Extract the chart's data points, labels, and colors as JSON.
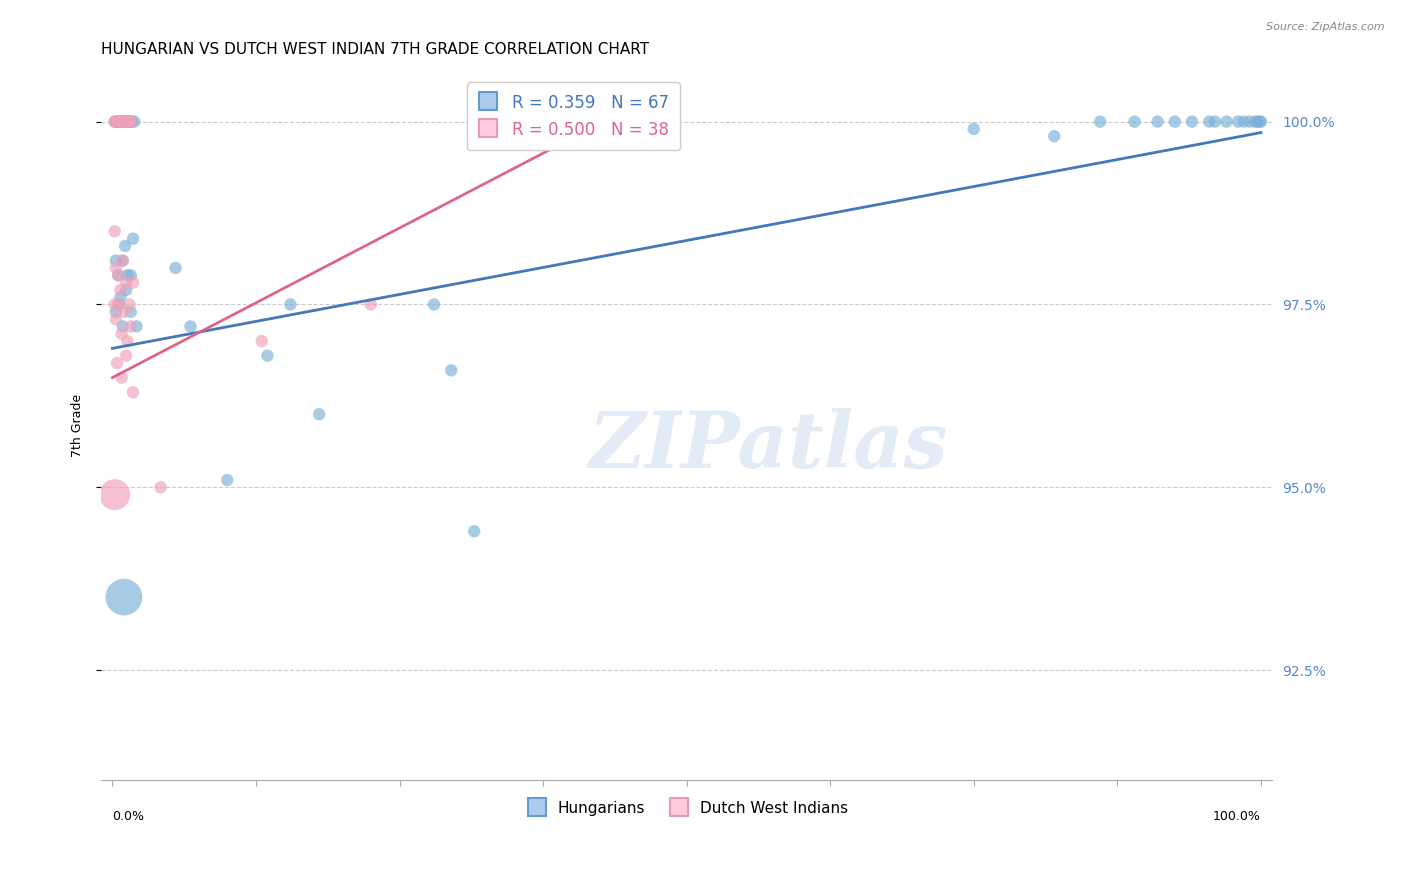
{
  "title": "HUNGARIAN VS DUTCH WEST INDIAN 7TH GRADE CORRELATION CHART",
  "source": "Source: ZipAtlas.com",
  "ylabel": "7th Grade",
  "ytick_labels": [
    "92.5%",
    "95.0%",
    "97.5%",
    "100.0%"
  ],
  "ytick_values": [
    0.925,
    0.95,
    0.975,
    1.0
  ],
  "legend_entries": [
    {
      "label": "R = 0.359   N = 67",
      "color": "#4477bb"
    },
    {
      "label": "R = 0.500   N = 38",
      "color": "#dd6688"
    }
  ],
  "legend_bottom": [
    {
      "label": "Hungarians",
      "color": "#99bbdd"
    },
    {
      "label": "Dutch West Indians",
      "color": "#ffaabb"
    }
  ],
  "watermark": "ZIPatlas",
  "blue_scatter_x": [
    0.002,
    0.003,
    0.004,
    0.005,
    0.005,
    0.006,
    0.006,
    0.007,
    0.007,
    0.008,
    0.009,
    0.01,
    0.011,
    0.012,
    0.013,
    0.014,
    0.015,
    0.016,
    0.017,
    0.019,
    0.003,
    0.005,
    0.007,
    0.009,
    0.011,
    0.013,
    0.016,
    0.018,
    0.003,
    0.006,
    0.009,
    0.012,
    0.016,
    0.021,
    0.068,
    0.135,
    0.155,
    0.28,
    0.295,
    0.055,
    0.1,
    0.18,
    0.01,
    0.315,
    0.75,
    0.82,
    0.86,
    0.89,
    0.91,
    0.925,
    0.94,
    0.955,
    0.96,
    0.97,
    0.98,
    0.985,
    0.99,
    0.995,
    0.997,
    0.999,
    1.0
  ],
  "blue_scatter_y": [
    1.0,
    1.0,
    1.0,
    1.0,
    1.0,
    1.0,
    1.0,
    1.0,
    1.0,
    1.0,
    1.0,
    1.0,
    1.0,
    1.0,
    1.0,
    1.0,
    1.0,
    1.0,
    1.0,
    1.0,
    0.981,
    0.979,
    0.976,
    0.981,
    0.983,
    0.979,
    0.979,
    0.984,
    0.974,
    0.975,
    0.972,
    0.977,
    0.974,
    0.972,
    0.972,
    0.968,
    0.975,
    0.975,
    0.966,
    0.98,
    0.951,
    0.96,
    0.935,
    0.944,
    0.999,
    0.998,
    1.0,
    1.0,
    1.0,
    1.0,
    1.0,
    1.0,
    1.0,
    1.0,
    1.0,
    1.0,
    1.0,
    1.0,
    1.0,
    1.0,
    1.0
  ],
  "blue_scatter_sizes": [
    80,
    80,
    80,
    80,
    80,
    80,
    80,
    80,
    80,
    80,
    80,
    80,
    80,
    80,
    80,
    80,
    80,
    80,
    80,
    80,
    80,
    80,
    80,
    80,
    80,
    80,
    80,
    80,
    80,
    80,
    80,
    80,
    80,
    80,
    80,
    80,
    80,
    80,
    80,
    80,
    80,
    80,
    700,
    80,
    80,
    80,
    80,
    80,
    80,
    80,
    80,
    80,
    80,
    80,
    80,
    80,
    80,
    80,
    80,
    80,
    80
  ],
  "pink_scatter_x": [
    0.002,
    0.003,
    0.004,
    0.005,
    0.006,
    0.007,
    0.008,
    0.009,
    0.01,
    0.011,
    0.012,
    0.013,
    0.014,
    0.015,
    0.016,
    0.003,
    0.005,
    0.007,
    0.009,
    0.012,
    0.015,
    0.018,
    0.003,
    0.005,
    0.008,
    0.01,
    0.013,
    0.016,
    0.004,
    0.008,
    0.012,
    0.018,
    0.13,
    0.225,
    0.002,
    0.042,
    0.002,
    0.002
  ],
  "pink_scatter_y": [
    1.0,
    1.0,
    1.0,
    1.0,
    1.0,
    1.0,
    1.0,
    1.0,
    1.0,
    1.0,
    1.0,
    1.0,
    1.0,
    1.0,
    1.0,
    0.98,
    0.979,
    0.977,
    0.981,
    0.978,
    0.975,
    0.978,
    0.973,
    0.975,
    0.971,
    0.974,
    0.97,
    0.972,
    0.967,
    0.965,
    0.968,
    0.963,
    0.97,
    0.975,
    0.949,
    0.95,
    0.985,
    0.975
  ],
  "pink_scatter_sizes": [
    80,
    80,
    80,
    80,
    80,
    80,
    80,
    80,
    80,
    80,
    80,
    80,
    80,
    80,
    80,
    80,
    80,
    80,
    80,
    80,
    80,
    80,
    80,
    80,
    80,
    80,
    80,
    80,
    80,
    80,
    80,
    80,
    80,
    80,
    500,
    80,
    80,
    80
  ],
  "blue_line_x": [
    0.0,
    1.0
  ],
  "blue_line_y": [
    0.969,
    0.9985
  ],
  "pink_line_x": [
    0.0,
    0.44
  ],
  "pink_line_y": [
    0.965,
    1.001
  ],
  "xlim": [
    -0.01,
    1.01
  ],
  "ylim": [
    0.91,
    1.007
  ],
  "blue_color": "#7ab0d8",
  "pink_color": "#f0a0b8",
  "blue_line_color": "#4477bb",
  "pink_line_color": "#dd6688",
  "background_color": "#ffffff",
  "grid_color": "#cccccc",
  "right_label_color": "#5588cc",
  "title_fontsize": 11,
  "axis_label_fontsize": 9
}
